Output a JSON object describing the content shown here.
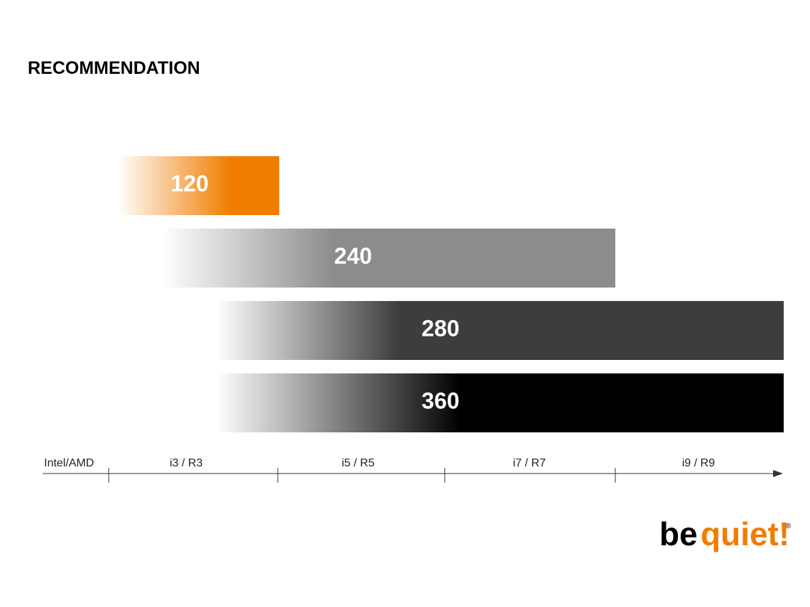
{
  "header": {
    "title": "RECOMMENDATION"
  },
  "bars": [
    {
      "label": "120"
    },
    {
      "label": "240"
    },
    {
      "label": "280"
    },
    {
      "label": "360"
    }
  ],
  "axis": {
    "label": "Intel/AMD",
    "tiers": [
      "i3 / R3",
      "i5 / R5",
      "i7 / R7",
      "i9 / R9"
    ]
  },
  "logo": {
    "part1": "be",
    "part2": "quiet!",
    "mark": "®"
  }
}
